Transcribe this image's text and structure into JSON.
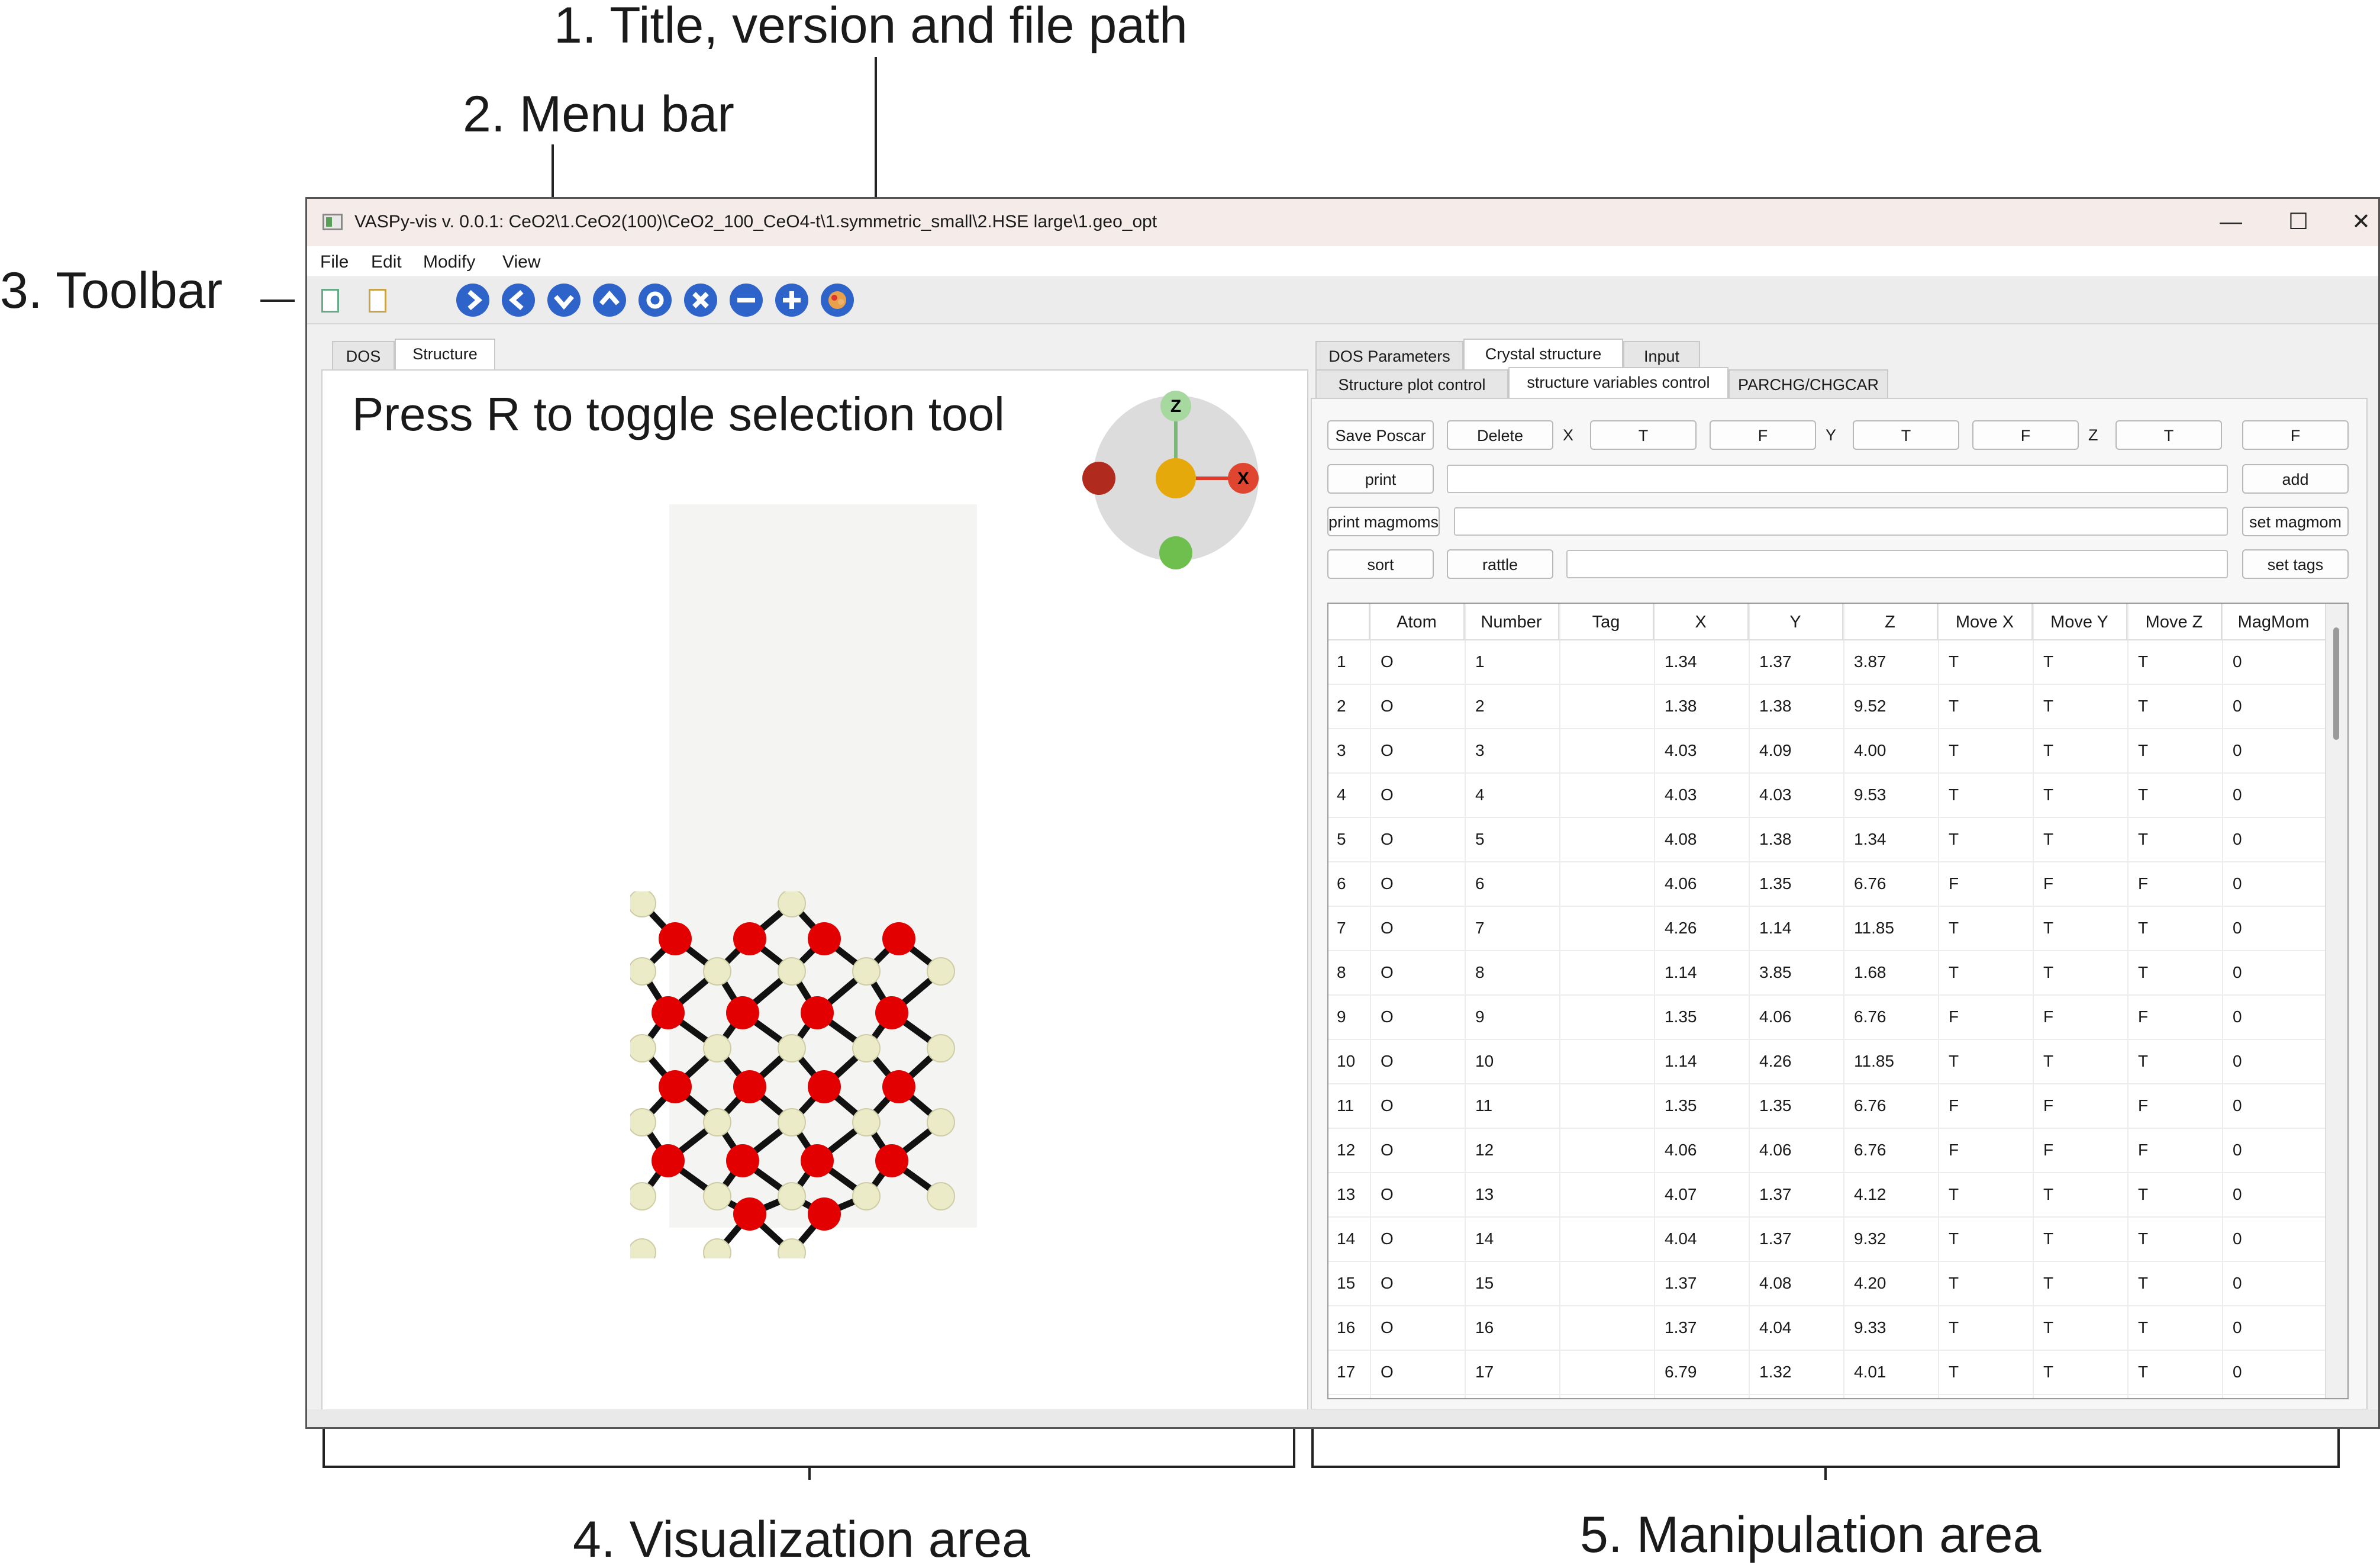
{
  "callouts": {
    "c1": "1. Title, version and file path",
    "c2": "2. Menu bar",
    "c3": "3. Toolbar",
    "c4": "4. Visualization area",
    "c5": "5. Manipulation area"
  },
  "window": {
    "title": "VASPy-vis v. 0.0.1: CeO2\\1.CeO2(100)\\CeO2_100_CeO4-t\\1.symmetric_small\\2.HSE large\\1.geo_opt",
    "controls": {
      "minimize": "—",
      "maximize": "☐",
      "close": "✕"
    }
  },
  "menu": [
    "File",
    "Edit",
    "Modify",
    "View"
  ],
  "toolbar": {
    "nav_icons": [
      "arrow-right-icon",
      "arrow-left-icon",
      "arrow-down-icon",
      "arrow-up-icon",
      "circle-icon",
      "x-icon",
      "minus-icon",
      "plus-icon",
      "palette-icon"
    ],
    "icon_color": "#2e63c9"
  },
  "left_tabs": [
    "DOS",
    "Structure"
  ],
  "viewport": {
    "hint": "Press R to toggle selection tool",
    "axis_labels": {
      "z": "Z",
      "x": "X"
    }
  },
  "right_tabs": [
    "DOS Parameters",
    "Crystal structure",
    "Input"
  ],
  "sub_tabs": [
    "Structure plot control",
    "structure variables control",
    "PARCHG/CHGCAR"
  ],
  "controls": {
    "save_poscar": "Save Poscar",
    "delete": "Delete",
    "x_label": "X",
    "x_t": "T",
    "x_f": "F",
    "y_label": "Y",
    "y_t": "T",
    "y_f": "F",
    "z_label": "Z",
    "z_t": "T",
    "z_f": "F",
    "print": "print",
    "add": "add",
    "print_magmoms": "print magmoms",
    "set_magmom": "set magmom",
    "sort": "sort",
    "rattle": "rattle",
    "set_tags": "set tags"
  },
  "table": {
    "columns": [
      "Atom",
      "Number",
      "Tag",
      "X",
      "Y",
      "Z",
      "Move X",
      "Move Y",
      "Move Z",
      "MagMom"
    ],
    "rows": [
      [
        "1",
        "O",
        "1",
        "",
        "1.34",
        "1.37",
        "3.87",
        "T",
        "T",
        "T",
        "0"
      ],
      [
        "2",
        "O",
        "2",
        "",
        "1.38",
        "1.38",
        "9.52",
        "T",
        "T",
        "T",
        "0"
      ],
      [
        "3",
        "O",
        "3",
        "",
        "4.03",
        "4.09",
        "4.00",
        "T",
        "T",
        "T",
        "0"
      ],
      [
        "4",
        "O",
        "4",
        "",
        "4.03",
        "4.03",
        "9.53",
        "T",
        "T",
        "T",
        "0"
      ],
      [
        "5",
        "O",
        "5",
        "",
        "4.08",
        "1.38",
        "1.34",
        "T",
        "T",
        "T",
        "0"
      ],
      [
        "6",
        "O",
        "6",
        "",
        "4.06",
        "1.35",
        "6.76",
        "F",
        "F",
        "F",
        "0"
      ],
      [
        "7",
        "O",
        "7",
        "",
        "4.26",
        "1.14",
        "11.85",
        "T",
        "T",
        "T",
        "0"
      ],
      [
        "8",
        "O",
        "8",
        "",
        "1.14",
        "3.85",
        "1.68",
        "T",
        "T",
        "T",
        "0"
      ],
      [
        "9",
        "O",
        "9",
        "",
        "1.35",
        "4.06",
        "6.76",
        "F",
        "F",
        "F",
        "0"
      ],
      [
        "10",
        "O",
        "10",
        "",
        "1.14",
        "4.26",
        "11.85",
        "T",
        "T",
        "T",
        "0"
      ],
      [
        "11",
        "O",
        "11",
        "",
        "1.35",
        "1.35",
        "6.76",
        "F",
        "F",
        "F",
        "0"
      ],
      [
        "12",
        "O",
        "12",
        "",
        "4.06",
        "4.06",
        "6.76",
        "F",
        "F",
        "F",
        "0"
      ],
      [
        "13",
        "O",
        "13",
        "",
        "4.07",
        "1.37",
        "4.12",
        "T",
        "T",
        "T",
        "0"
      ],
      [
        "14",
        "O",
        "14",
        "",
        "4.04",
        "1.37",
        "9.32",
        "T",
        "T",
        "T",
        "0"
      ],
      [
        "15",
        "O",
        "15",
        "",
        "1.37",
        "4.08",
        "4.20",
        "T",
        "T",
        "T",
        "0"
      ],
      [
        "16",
        "O",
        "16",
        "",
        "1.37",
        "4.04",
        "9.33",
        "T",
        "T",
        "T",
        "0"
      ],
      [
        "17",
        "O",
        "17",
        "",
        "6.79",
        "1.32",
        "4.01",
        "T",
        "T",
        "T",
        "0"
      ]
    ]
  },
  "colors": {
    "oxygen": "#e30000",
    "cerium": "#ecebc8",
    "bond": "#111111"
  }
}
